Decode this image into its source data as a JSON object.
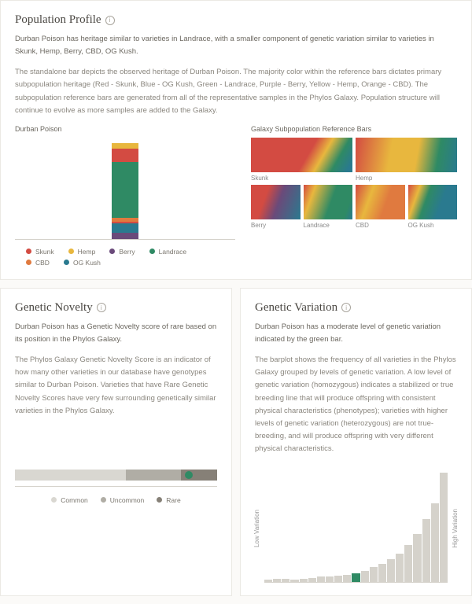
{
  "population": {
    "title": "Population Profile",
    "p1_a": "Durban Poison has heritage similar to varieties in Landrace, with a smaller component of genetic variation similar to varieties in Skunk, Hemp, Berry, CBD, OG Kush.",
    "p2": "The standalone bar depicts the observed heritage of Durban Poison. The majority color within the reference bars dictates primary subpopulation heritage (Red - Skunk, Blue - OG Kush, Green - Landrace, Purple - Berry, Yellow - Hemp, Orange - CBD). The subpopulation reference bars are generated from all of the representative samples in the Phylos Galaxy. Population structure will continue to evolve as more samples are added to the Galaxy.",
    "left_label": "Durban Poison",
    "right_label": "Galaxy Subpopulation Reference Bars",
    "stack": {
      "segments": [
        {
          "color": "#e8b73e",
          "pct": 6
        },
        {
          "color": "#d34b42",
          "pct": 14
        },
        {
          "color": "#2f8a64",
          "pct": 58
        },
        {
          "color": "#e07a3f",
          "pct": 4
        },
        {
          "color": "#d34b42",
          "pct": 2
        },
        {
          "color": "#2a7a8f",
          "pct": 10
        },
        {
          "color": "#6a4a7a",
          "pct": 6
        }
      ]
    },
    "legend": [
      {
        "label": "Skunk",
        "color": "#d34b42"
      },
      {
        "label": "Hemp",
        "color": "#e8b73e"
      },
      {
        "label": "Berry",
        "color": "#6a4a7a"
      },
      {
        "label": "Landrace",
        "color": "#2f8a64"
      },
      {
        "label": "CBD",
        "color": "#e07a3f"
      },
      {
        "label": "OG Kush",
        "color": "#2a7a8f"
      }
    ],
    "refs": [
      {
        "label": "Skunk",
        "w": 2,
        "grad": "linear-gradient(120deg,#d34b42 0%,#d34b42 55%,#e8b73e 68%,#2f8a64 82%,#2a7a8f 95%)"
      },
      {
        "label": "Hemp",
        "w": 2,
        "grad": "linear-gradient(100deg,#d34b42 0%,#e8b73e 35%,#e8b73e 60%,#2f8a64 80%,#2a7a8f 100%)"
      },
      {
        "label": "Berry",
        "w": 4,
        "grad": "linear-gradient(110deg,#d34b42 0%,#d34b42 30%,#6a4a7a 55%,#2a7a8f 100%)"
      },
      {
        "label": "Landrace",
        "w": 4,
        "grad": "linear-gradient(110deg,#d34b42 0%,#e8b73e 20%,#2f8a64 55%,#2f8a64 85%,#2a7a8f 100%)"
      },
      {
        "label": "CBD",
        "w": 4,
        "grad": "linear-gradient(110deg,#d34b42 0%,#e8b73e 30%,#e07a3f 60%,#e07a3f 90%)"
      },
      {
        "label": "OG Kush",
        "w": 4,
        "grad": "linear-gradient(110deg,#d34b42 0%,#e8b73e 20%,#2f8a64 38%,#2a7a8f 65%,#2a7a8f 100%)"
      }
    ]
  },
  "novelty": {
    "title": "Genetic Novelty",
    "p1": "Durban Poison has a Genetic Novelty score of rare based on its position in the Phylos Galaxy.",
    "p2": "The Phylos Galaxy Genetic Novelty Score is an indicator of how many other varieties in our database have genotypes similar to Durban Poison. Varieties that have Rare Genetic Novelty Scores have very few surrounding genetically similar varieties in the Phylos Galaxy.",
    "segments": [
      {
        "color": "#d9d7d1",
        "pct": 55
      },
      {
        "color": "#b0ada5",
        "pct": 27
      },
      {
        "color": "#868077",
        "pct": 18
      }
    ],
    "marker": {
      "pos_pct": 86,
      "color": "#2f8a64"
    },
    "legend": [
      {
        "label": "Common",
        "color": "#d9d7d1"
      },
      {
        "label": "Uncommon",
        "color": "#b0ada5"
      },
      {
        "label": "Rare",
        "color": "#868077"
      }
    ]
  },
  "variation": {
    "title": "Genetic Variation",
    "p1": "Durban Poison has a moderate level of genetic variation indicated by the green bar.",
    "p2": "The barplot shows the frequency of all varieties in the Phylos Galaxy grouped by levels of genetic variation. A low level of genetic variation (homozygous) indicates a stabilized or true breeding line that will produce offspring with consistent physical characteristics (phenotypes); varieties with higher levels of genetic variation (heterozygous) are not true-breeding, and will produce offspring with very different physical characteristics.",
    "low_label": "Low Variation",
    "high_label": "High Variation",
    "bars": [
      2,
      3,
      3,
      2,
      3,
      4,
      5,
      5,
      6,
      7,
      8,
      10,
      14,
      17,
      21,
      26,
      34,
      44,
      58,
      72,
      100
    ],
    "highlight_index": 10,
    "bar_color": "#d5d2cb",
    "highlight_color": "#2f8a64"
  }
}
